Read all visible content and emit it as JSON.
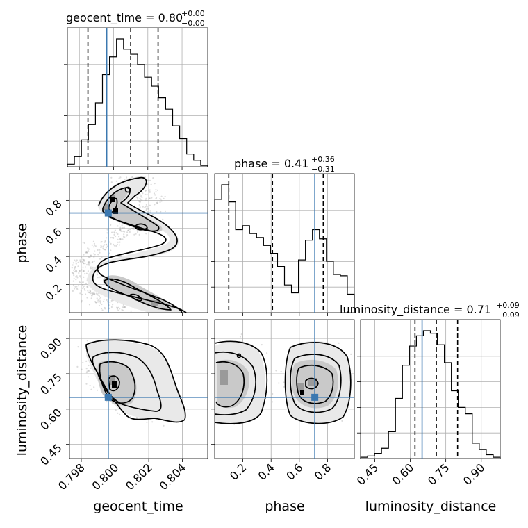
{
  "chart_data": {
    "type": "corner",
    "parameters": [
      "geocent_time",
      "phase",
      "luminosity_distance"
    ],
    "titles": [
      {
        "param": "geocent_time",
        "text": "geocent_time = 0.80",
        "plus": "+0.00",
        "minus": "−0.00",
        "median": 0.801,
        "lower": 0.7985,
        "upper": 0.8026
      },
      {
        "param": "phase",
        "text": "phase = 0.41",
        "plus": "+0.36",
        "minus": "−0.31",
        "median": 0.41,
        "lower": 0.1,
        "upper": 0.77
      },
      {
        "param": "luminosity_distance",
        "text": "luminosity_distance = 0.71",
        "plus": "+0.09",
        "minus": "−0.09",
        "median": 0.71,
        "lower": 0.62,
        "upper": 0.8
      }
    ],
    "truths": {
      "geocent_time": 0.7996,
      "phase": 0.71,
      "luminosity_distance": 0.65
    },
    "ranges": {
      "geocent_time": [
        0.7973,
        0.8055
      ],
      "phase": [
        0.0,
        0.99
      ],
      "luminosity_distance": [
        0.39,
        0.98
      ]
    },
    "ticks": {
      "geocent_time": {
        "values": [
          0.798,
          0.8,
          0.802,
          0.804
        ],
        "labels": [
          "0.798",
          "0.800",
          "0.802",
          "0.804"
        ]
      },
      "phase": {
        "values": [
          0.2,
          0.4,
          0.6,
          0.8
        ],
        "labels": [
          "0.2",
          "0.4",
          "0.6",
          "0.8"
        ]
      },
      "luminosity_distance": {
        "values": [
          0.45,
          0.6,
          0.75,
          0.9
        ],
        "labels": [
          "0.45",
          "0.60",
          "0.75",
          "0.90"
        ]
      }
    },
    "histograms": {
      "geocent_time": {
        "edges": [
          0.7973,
          0.79771,
          0.79812,
          0.79853,
          0.79894,
          0.79935,
          0.79976,
          0.80017,
          0.80058,
          0.80099,
          0.8014,
          0.80181,
          0.80222,
          0.80263,
          0.80304,
          0.80345,
          0.80386,
          0.80427,
          0.80468,
          0.80509,
          0.8055
        ],
        "counts": [
          2,
          8,
          21,
          33,
          50,
          72,
          86,
          100,
          92,
          88,
          80,
          70,
          63,
          54,
          45,
          32,
          22,
          10,
          5,
          1
        ]
      },
      "phase": {
        "edges": [
          0.0,
          0.0495,
          0.099,
          0.1485,
          0.198,
          0.2475,
          0.297,
          0.3465,
          0.396,
          0.4455,
          0.495,
          0.5445,
          0.594,
          0.6435,
          0.693,
          0.7425,
          0.792,
          0.8415,
          0.891,
          0.9405,
          0.99
        ],
        "counts": [
          86,
          97,
          84,
          63,
          66,
          60,
          57,
          51,
          45,
          35,
          21,
          15,
          40,
          55,
          63,
          56,
          39,
          29,
          28,
          14
        ]
      },
      "luminosity_distance": {
        "edges": [
          0.39,
          0.4195,
          0.449,
          0.4785,
          0.508,
          0.5375,
          0.567,
          0.5965,
          0.626,
          0.6555,
          0.685,
          0.7145,
          0.744,
          0.7735,
          0.803,
          0.8325,
          0.862,
          0.8915,
          0.921,
          0.9505,
          0.98
        ],
        "counts": [
          1,
          2,
          4,
          8,
          21,
          47,
          73,
          88,
          96,
          100,
          98,
          89,
          75,
          53,
          40,
          35,
          12,
          7,
          3,
          1
        ]
      }
    },
    "legend": "none",
    "grid": true
  }
}
